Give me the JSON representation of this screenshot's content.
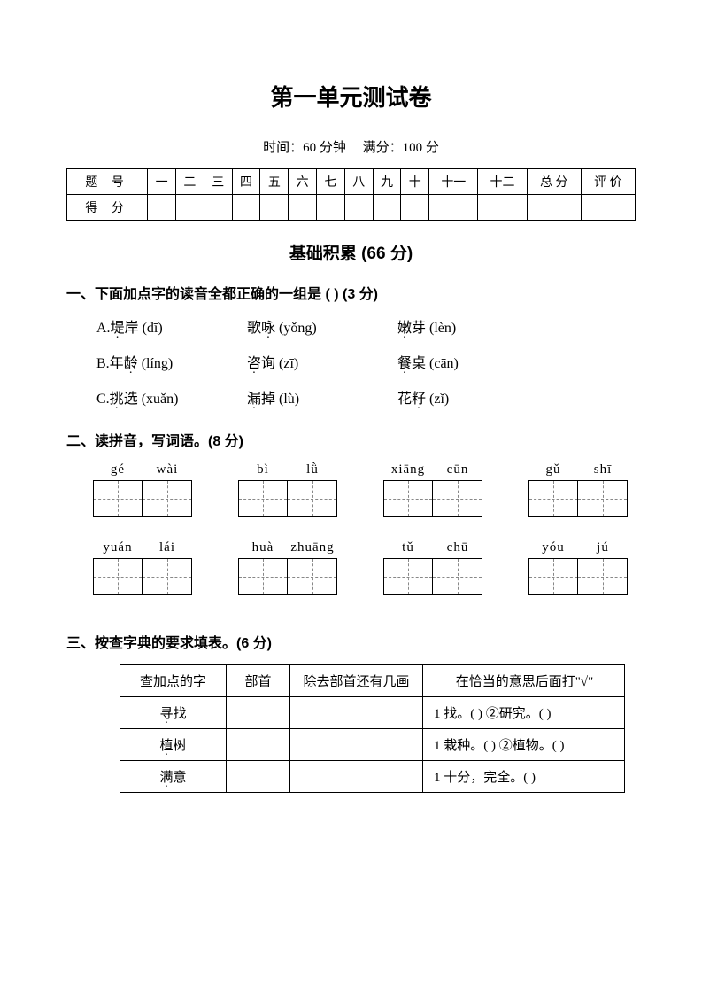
{
  "title": "第一单元测试卷",
  "meta": {
    "time_label": "时间：60 分钟",
    "score_label": "满分：100 分"
  },
  "score_table": {
    "row1_label": "题  号",
    "row2_label": "得  分",
    "cols": [
      "一",
      "二",
      "三",
      "四",
      "五",
      "六",
      "七",
      "八",
      "九",
      "十",
      "十一",
      "十二",
      "总  分",
      "评  价"
    ]
  },
  "section_title": "基础积累  (66 分)",
  "q1": {
    "heading": "一、下面加点字的读音全都正确的一组是 (        ) (3 分)",
    "rows": [
      {
        "a_prefix": "A.",
        "a_char": "堤",
        "a_rest": "岸 (dī)",
        "b_main": "歌",
        "b_char": "咏",
        "b_rest": " (yǒng)",
        "c_char": "嫩",
        "c_rest": "芽 (lèn)"
      },
      {
        "a_prefix": "B.",
        "a_main": "年",
        "a_char": "龄",
        "a_rest": " (líng)",
        "b_char": "咨",
        "b_rest": "询 (zī)",
        "c_char": "餐",
        "c_rest": "桌 (cān)"
      },
      {
        "a_prefix": "C.",
        "a_char": "挑",
        "a_rest": "选 (xuǎn)",
        "b_char": "漏",
        "b_rest": "掉 (lù)",
        "c_main": "花",
        "c_char": "籽",
        "c_rest": " (zǐ)"
      }
    ]
  },
  "q2": {
    "heading": "二、读拼音，写词语。(8 分)",
    "rows": [
      [
        {
          "p1": "gé",
          "p2": "wài"
        },
        {
          "p1": "bì",
          "p2": "lǜ"
        },
        {
          "p1": "xiāng",
          "p2": "cūn"
        },
        {
          "p1": "gǔ",
          "p2": "shī"
        }
      ],
      [
        {
          "p1": "yuán",
          "p2": "lái"
        },
        {
          "p1": "huà",
          "p2": "zhuāng"
        },
        {
          "p1": "tǔ",
          "p2": "chū"
        },
        {
          "p1": "yóu",
          "p2": "jú"
        }
      ]
    ]
  },
  "q3": {
    "heading": "三、按查字典的要求填表。(6 分)",
    "headers": [
      "查加点的字",
      "部首",
      "除去部首还有几画",
      "在恰当的意思后面打\"√\""
    ],
    "rows": [
      {
        "word_pre": "",
        "word_char": "寻",
        "word_post": "找",
        "meaning": "1 找。(    ) ②研究。(    )"
      },
      {
        "word_pre": "",
        "word_char": "植",
        "word_post": "树",
        "meaning": "1 栽种。(    ) ②植物。(    )"
      },
      {
        "word_pre": "",
        "word_char": "满",
        "word_post": "意",
        "meaning": "1 十分，完全。(    )"
      }
    ]
  }
}
